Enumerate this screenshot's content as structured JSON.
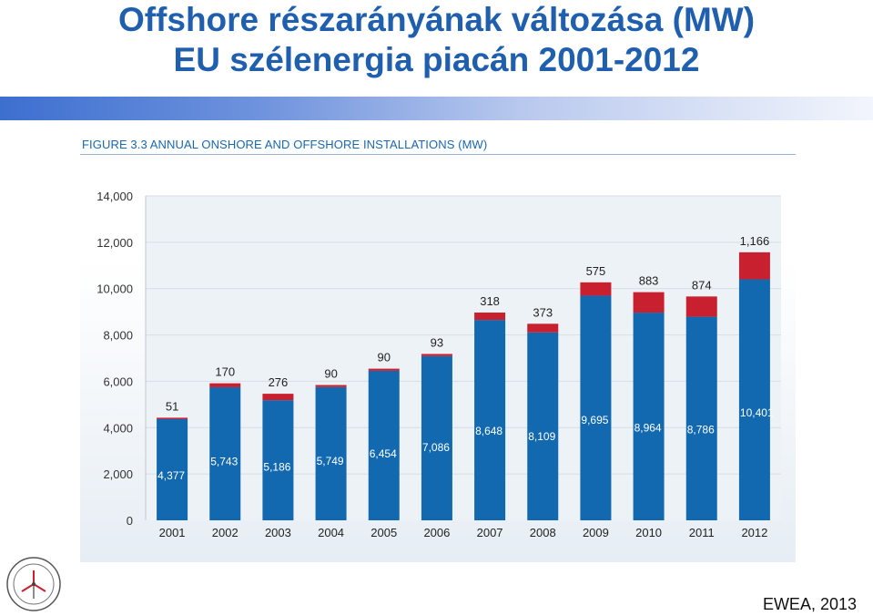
{
  "slide": {
    "title_line1": "Offshore részarányának változása (MW)",
    "title_line2": "EU szélenergia piacán 2001-2012",
    "credit": "EWEA, 2013"
  },
  "figure": {
    "caption": "FIGURE 3.3 ANNUAL ONSHORE AND OFFSHORE INSTALLATIONS (MW)"
  },
  "chart_data": {
    "type": "bar",
    "stacked": true,
    "title": "FIGURE 3.3 ANNUAL ONSHORE AND OFFSHORE INSTALLATIONS (MW)",
    "categories": [
      "2001",
      "2002",
      "2003",
      "2004",
      "2005",
      "2006",
      "2007",
      "2008",
      "2009",
      "2010",
      "2011",
      "2012"
    ],
    "series": [
      {
        "values": [
          4377,
          5743,
          5186,
          5749,
          6454,
          7086,
          8648,
          8109,
          9695,
          8964,
          8786,
          10401
        ],
        "color": "#1269b0",
        "labels": [
          "4,377",
          "5,743",
          "5,186",
          "5,749",
          "6,454",
          "7,086",
          "8,648",
          "8,109",
          "9,695",
          "8,964",
          "8,786",
          "10,401"
        ]
      },
      {
        "values": [
          51,
          170,
          276,
          90,
          90,
          93,
          318,
          373,
          575,
          883,
          874,
          1166
        ],
        "color": "#c8202f",
        "labels": [
          "51",
          "170",
          "276",
          "90",
          "90",
          "93",
          "318",
          "373",
          "575",
          "883",
          "874",
          "1,166"
        ]
      }
    ],
    "y_ticks": [
      "0",
      "2,000",
      "4,000",
      "6,000",
      "8,000",
      "10,000",
      "12,000",
      "14,000"
    ],
    "ylim": [
      0,
      14000
    ],
    "grid": true,
    "colors": {
      "onshore": "#1269b0",
      "offshore": "#c8202f",
      "grid": "#e3e9ef",
      "plot_bg": "#edf2f7"
    }
  }
}
